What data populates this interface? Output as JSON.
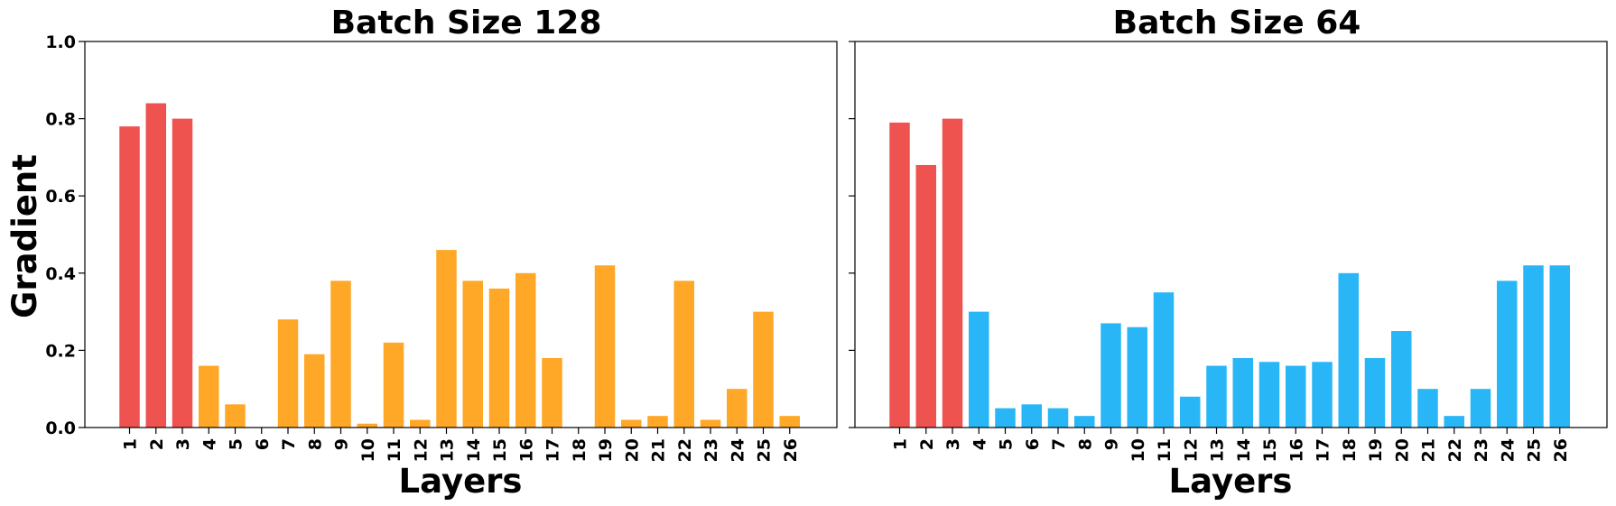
{
  "chart_data": [
    {
      "type": "bar",
      "title": "Batch Size 128",
      "xlabel": "Layers",
      "ylabel": "Gradient",
      "ylim": [
        0,
        1.0
      ],
      "yticks": [
        "0.0",
        "0.2",
        "0.4",
        "0.6",
        "0.8",
        "1.0"
      ],
      "categories": [
        "1",
        "2",
        "3",
        "4",
        "5",
        "6",
        "7",
        "8",
        "9",
        "10",
        "11",
        "12",
        "13",
        "14",
        "15",
        "16",
        "17",
        "18",
        "19",
        "20",
        "21",
        "22",
        "23",
        "24",
        "25",
        "26"
      ],
      "values": [
        0.78,
        0.84,
        0.8,
        0.16,
        0.06,
        0.0,
        0.28,
        0.19,
        0.38,
        0.01,
        0.22,
        0.02,
        0.46,
        0.38,
        0.36,
        0.4,
        0.18,
        0.0,
        0.42,
        0.02,
        0.03,
        0.38,
        0.02,
        0.1,
        0.3,
        0.03
      ],
      "highlight_first_n": 3,
      "colors": {
        "highlight": "#ef5350",
        "bar": "#ffa726"
      },
      "grid": false
    },
    {
      "type": "bar",
      "title": "Batch Size 64",
      "xlabel": "Layers",
      "ylabel": "",
      "ylim": [
        0,
        1.0
      ],
      "yticks": [],
      "categories": [
        "1",
        "2",
        "3",
        "4",
        "5",
        "6",
        "7",
        "8",
        "9",
        "10",
        "11",
        "12",
        "13",
        "14",
        "15",
        "16",
        "17",
        "18",
        "19",
        "20",
        "21",
        "22",
        "23",
        "24",
        "25",
        "26"
      ],
      "values": [
        0.79,
        0.68,
        0.8,
        0.3,
        0.05,
        0.06,
        0.05,
        0.03,
        0.27,
        0.26,
        0.35,
        0.08,
        0.16,
        0.18,
        0.17,
        0.16,
        0.17,
        0.4,
        0.18,
        0.25,
        0.1,
        0.03,
        0.1,
        0.38,
        0.42,
        0.42
      ],
      "highlight_first_n": 3,
      "colors": {
        "highlight": "#ef5350",
        "bar": "#29b6f6"
      },
      "grid": false
    }
  ]
}
